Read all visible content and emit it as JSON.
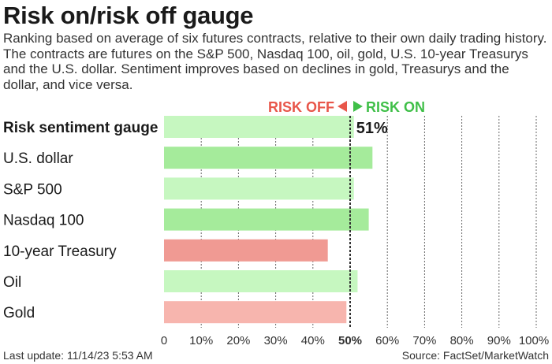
{
  "title": "Risk on/risk off gauge",
  "subtitle": "Ranking based on average of six futures contracts, relative to their own daily trading history. The contracts are futures on the S&P 500, Nasdaq 100, oil, gold, U.S. 10-year Treasurys and the U.S. dollar. Sentiment improves based on declines in gold, Treasurys and the dollar, and vice versa.",
  "footer": {
    "last_update": "Last update: 11/14/23 5:53 AM",
    "source": "Source: FactSet/MarketWatch"
  },
  "colors": {
    "gauge": "#c6f7c0",
    "risk_on_strong": "#a5eb9b",
    "risk_on_light": "#c6f7c0",
    "risk_off_strong": "#f09a93",
    "risk_off_light": "#f7b5ae",
    "risk_off_label": "#e8564a",
    "risk_on_label": "#3fbf48"
  },
  "chart_data": {
    "type": "bar",
    "orientation": "horizontal",
    "categories": [
      "Risk sentiment gauge",
      "U.S. dollar",
      "S&P 500",
      "Nasdaq 100",
      "10-year Treasury",
      "Oil",
      "Gold"
    ],
    "values": [
      51,
      56,
      51,
      55,
      44,
      52,
      49
    ],
    "bar_colors": [
      "#c6f7c0",
      "#a5eb9b",
      "#c6f7c0",
      "#a5eb9b",
      "#f09a93",
      "#c6f7c0",
      "#f7b5ae"
    ],
    "bold_category": "Risk sentiment gauge",
    "value_label": "51%",
    "xlim": [
      0,
      100
    ],
    "xticks": [
      "0",
      "10%",
      "20%",
      "30%",
      "40%",
      "50%",
      "60%",
      "70%",
      "80%",
      "90%",
      "100%"
    ],
    "xtick_values": [
      0,
      10,
      20,
      30,
      40,
      50,
      60,
      70,
      80,
      90,
      100
    ],
    "highlight_tick": "50%",
    "grid": "vertical-dashed",
    "midline": 50,
    "risk_off_label": "RISK OFF",
    "risk_on_label": "RISK ON"
  }
}
